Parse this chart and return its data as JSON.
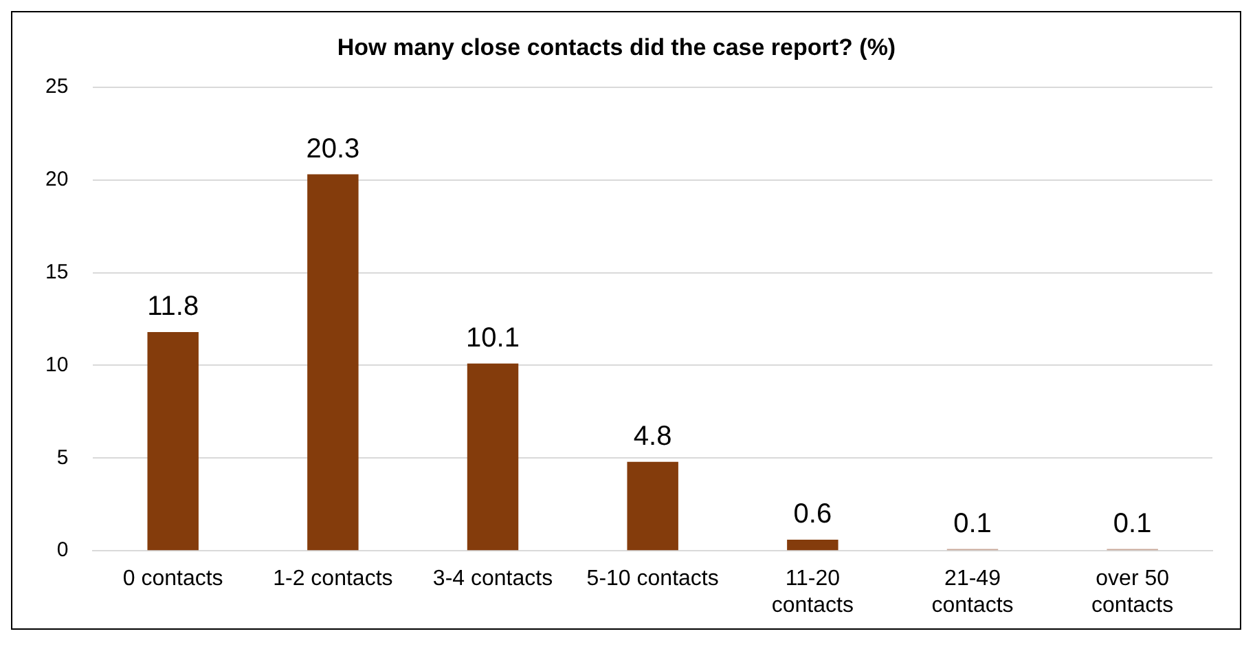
{
  "chart_data": {
    "type": "bar",
    "title": "How many close contacts did the case report? (%)",
    "categories": [
      "0 contacts",
      "1-2 contacts",
      "3-4 contacts",
      "5-10 contacts",
      "11-20 contacts",
      "21-49 contacts",
      "over 50 contacts"
    ],
    "values": [
      11.8,
      20.3,
      10.1,
      4.8,
      0.6,
      0.1,
      0.1
    ],
    "colors": [
      "#843c0c",
      "#843c0c",
      "#843c0c",
      "#843c0c",
      "#843c0c",
      "#c9a898",
      "#c9a898"
    ],
    "ylim": [
      0,
      25
    ],
    "yticks": [
      0,
      5,
      10,
      15,
      20,
      25
    ],
    "grid": "y",
    "data_labels": true,
    "legend": false
  }
}
